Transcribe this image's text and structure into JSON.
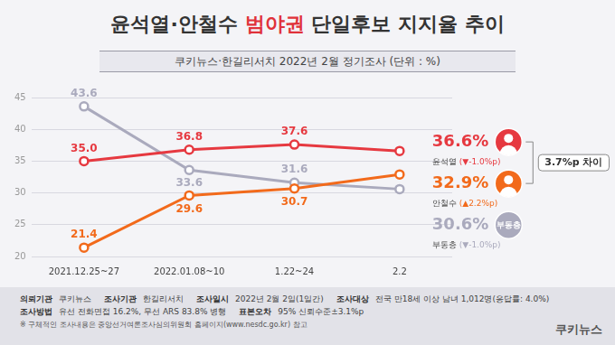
{
  "chart_data": {
    "type": "line",
    "title": "윤석열·안철수 범야권 단일후보 지지율 추이",
    "subtitle": "쿠키뉴스·한길리서치 2022년 2월 정기조사 (단위 : %)",
    "categories": [
      "2021.12.25~27",
      "2022.01.08~10",
      "1.22~24",
      "2.2"
    ],
    "series": [
      {
        "name": "윤석열",
        "color": "#e63940",
        "values": [
          35.0,
          36.8,
          37.6,
          36.6
        ],
        "value_labels": [
          "35.0",
          "36.8",
          "37.6",
          null
        ],
        "end_label": "36.6%",
        "change": "(▼-1.0%p)"
      },
      {
        "name": "안철수",
        "color": "#f26a1b",
        "values": [
          21.4,
          29.6,
          30.7,
          32.9
        ],
        "value_labels": [
          "21.4",
          "29.6",
          "30.7",
          null
        ],
        "end_label": "32.9%",
        "change": "(▲2.2%p)"
      },
      {
        "name": "부동층",
        "color": "#aaaabd",
        "values": [
          43.6,
          33.6,
          31.6,
          30.6
        ],
        "value_labels": [
          "43.6",
          "33.6",
          "31.6",
          null
        ],
        "end_label": "30.6%",
        "change": "(▼-1.0%p)"
      }
    ],
    "gap_label": "3.7%p 차이",
    "ylim": [
      20,
      45
    ],
    "yticks": [
      20,
      25,
      30,
      35,
      40,
      45
    ],
    "grid": true,
    "data_labels": true,
    "marker": "circle"
  },
  "footer": {
    "rows": [
      [
        {
          "label": "의뢰기관",
          "value": "쿠키뉴스"
        },
        {
          "label": "조사기관",
          "value": "한길리서치"
        },
        {
          "label": "조사일시",
          "value": "2022년 2월 2일(1일간)"
        },
        {
          "label": "조사대상",
          "value": "전국 만18세 이상 남녀 1,012명(응답률: 4.0%)"
        }
      ],
      [
        {
          "label": "조사방법",
          "value": "유선 전화면접 16.2%, 무선 ARS 83.8% 병행"
        },
        {
          "label": "표본오차",
          "value": "95% 신뢰수준±3.1%p"
        }
      ]
    ],
    "note": "※ 구체적인 조사내용은 중앙선거여론조사심의위원회 홈페이지(www.nesdc.go.kr) 참고",
    "logo": "쿠키뉴스"
  }
}
